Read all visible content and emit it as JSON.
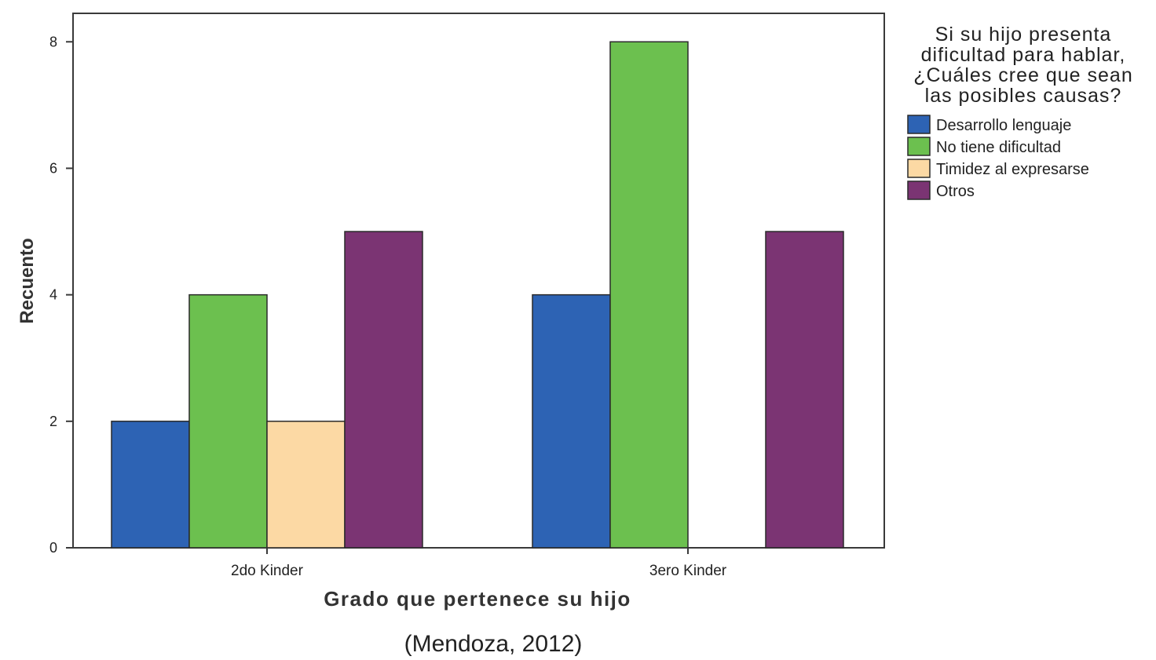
{
  "chart_data": {
    "type": "bar",
    "categories": [
      "2do Kinder",
      "3ero Kinder"
    ],
    "series": [
      {
        "name": "Desarrollo lenguaje",
        "values": [
          2,
          4
        ],
        "color": "#2d63b4"
      },
      {
        "name": "No tiene dificultad",
        "values": [
          4,
          8
        ],
        "color": "#6cc04f"
      },
      {
        "name": "Timidez al expresarse",
        "values": [
          2,
          0
        ],
        "color": "#fcd9a4"
      },
      {
        "name": "Otros",
        "values": [
          5,
          5
        ],
        "color": "#7b3473"
      }
    ],
    "xlabel": "Grado que pertenece su hijo",
    "ylabel": "Recuento",
    "ylim": [
      0,
      8.45
    ],
    "yticks": [
      0,
      2,
      4,
      6,
      8
    ],
    "legend": {
      "title_lines": [
        "Si su hijo presenta",
        "dificultad para hablar,",
        "¿Cuáles cree que sean",
        "las posibles causas?"
      ],
      "position": "right"
    },
    "grid": false
  },
  "caption": "(Mendoza, 2012)"
}
